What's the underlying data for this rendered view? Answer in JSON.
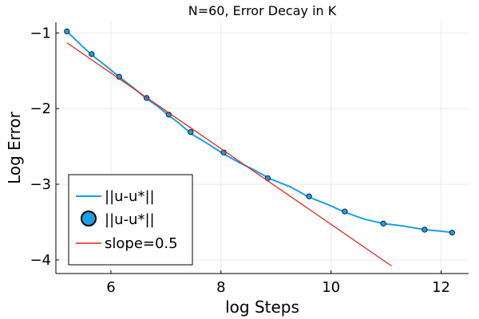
{
  "chart_data": {
    "type": "line",
    "title": "N=60, Error Decay in K",
    "xlabel": "log Steps",
    "ylabel": "Log Error",
    "xlim": [
      5.0,
      12.5
    ],
    "ylim": [
      -4.18,
      -0.86
    ],
    "xticks": [
      6,
      8,
      10,
      12
    ],
    "yticks": [
      -1,
      -2,
      -3,
      -4
    ],
    "xtick_labels": [
      "6",
      "8",
      "10",
      "12"
    ],
    "ytick_labels": [
      "−1",
      "−2",
      "−3",
      "−4"
    ],
    "grid": true,
    "legend_position": "bottom-left",
    "series": [
      {
        "name": "||u-u*||",
        "kind": "line",
        "color": "#1a9fe8",
        "x": [
          5.2,
          5.4,
          5.65,
          5.9,
          6.15,
          6.4,
          6.65,
          6.85,
          7.05,
          7.25,
          7.45,
          7.75,
          8.05,
          8.35,
          8.6,
          8.9,
          9.25,
          9.6,
          9.95,
          10.25,
          10.6,
          10.95,
          11.3,
          11.7,
          12.0,
          12.25
        ],
        "y": [
          -0.98,
          -1.12,
          -1.29,
          -1.43,
          -1.58,
          -1.72,
          -1.87,
          -1.97,
          -2.09,
          -2.2,
          -2.33,
          -2.46,
          -2.6,
          -2.72,
          -2.81,
          -2.93,
          -3.03,
          -3.17,
          -3.27,
          -3.37,
          -3.46,
          -3.52,
          -3.55,
          -3.6,
          -3.62,
          -3.64
        ]
      },
      {
        "name": "||u-u*||",
        "kind": "scatter",
        "color": "#1a9fe8",
        "x": [
          5.2,
          5.65,
          6.15,
          6.65,
          7.05,
          7.45,
          8.05,
          8.85,
          9.6,
          10.25,
          10.95,
          11.7,
          12.2
        ],
        "y": [
          -0.98,
          -1.28,
          -1.58,
          -1.86,
          -2.08,
          -2.31,
          -2.58,
          -2.92,
          -3.16,
          -3.36,
          -3.52,
          -3.6,
          -3.64
        ]
      },
      {
        "name": "slope=0.5",
        "kind": "line",
        "color": "#e5241b",
        "x": [
          5.2,
          11.1
        ],
        "y": [
          -1.13,
          -4.08
        ]
      }
    ]
  }
}
